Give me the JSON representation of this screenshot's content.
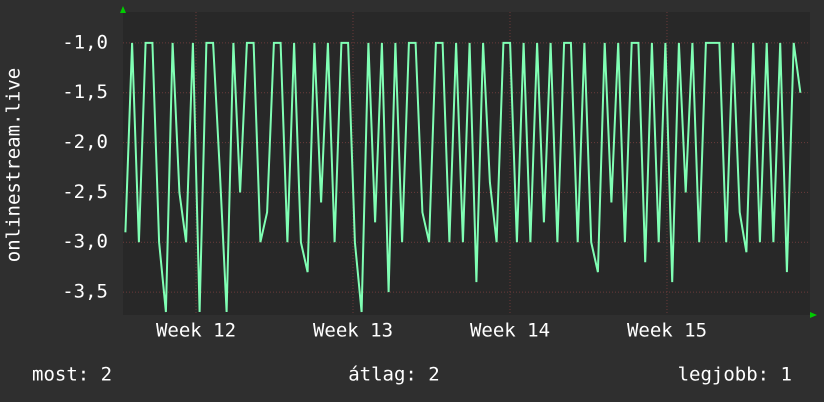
{
  "chart_data": {
    "type": "line",
    "y_label": "onlinestream.live",
    "x": [
      11.55,
      11.593,
      11.636,
      11.679,
      11.722,
      11.765,
      11.808,
      11.851,
      11.894,
      11.937,
      11.98,
      12.023,
      12.066,
      12.109,
      12.152,
      12.195,
      12.238,
      12.281,
      12.324,
      12.367,
      12.41,
      12.453,
      12.496,
      12.539,
      12.582,
      12.625,
      12.668,
      12.711,
      12.754,
      12.797,
      12.84,
      12.883,
      12.926,
      12.969,
      13.012,
      13.055,
      13.098,
      13.141,
      13.184,
      13.227,
      13.27,
      13.313,
      13.356,
      13.399,
      13.442,
      13.485,
      13.528,
      13.571,
      13.614,
      13.657,
      13.7,
      13.743,
      13.786,
      13.829,
      13.872,
      13.915,
      13.958,
      14.001,
      14.044,
      14.087,
      14.13,
      14.173,
      14.216,
      14.259,
      14.302,
      14.345,
      14.388,
      14.431,
      14.474,
      14.517,
      14.56,
      14.603,
      14.646,
      14.689,
      14.732,
      14.775,
      14.818,
      14.861,
      14.904,
      14.947,
      14.99,
      15.033,
      15.076,
      15.119,
      15.162,
      15.205,
      15.248,
      15.291,
      15.334,
      15.377,
      15.42,
      15.463,
      15.506,
      15.549,
      15.592,
      15.635,
      15.678,
      15.721,
      15.764,
      15.807,
      15.85
    ],
    "series": [
      {
        "color": "#80ffb4",
        "values": [
          -2.9,
          -1,
          -3,
          -1,
          -1,
          -3,
          -3.7,
          -1,
          -2.5,
          -3,
          -1,
          -3.7,
          -1,
          -1,
          -2.3,
          -3.7,
          -1,
          -2.5,
          -1,
          -1,
          -3,
          -2.7,
          -1,
          -1,
          -3,
          -1,
          -3,
          -3.3,
          -1,
          -2.6,
          -1,
          -3,
          -1,
          -1,
          -3,
          -3.7,
          -1,
          -2.8,
          -1,
          -3.5,
          -1,
          -3,
          -1,
          -1,
          -2.7,
          -3,
          -1,
          -1,
          -3,
          -1,
          -3,
          -1,
          -3.4,
          -1,
          -2.4,
          -3,
          -1,
          -1,
          -3,
          -1,
          -3,
          -1,
          -2.8,
          -1,
          -3,
          -1,
          -1,
          -3,
          -1,
          -3,
          -3.3,
          -1,
          -2.6,
          -1,
          -3,
          -1,
          -1,
          -3.2,
          -1,
          -3,
          -1,
          -3.4,
          -1,
          -2.5,
          -1,
          -3,
          -1,
          -1,
          -1,
          -3,
          -1,
          -2.7,
          -3.1,
          -1,
          -3,
          -1,
          -3,
          -1,
          -3.3,
          -1,
          -1.5
        ]
      }
    ],
    "xlim": [
      11.535,
      15.911
    ],
    "xticks": [
      {
        "value": 12,
        "label": "Week 12"
      },
      {
        "value": 13,
        "label": "Week 13"
      },
      {
        "value": 14,
        "label": "Week 14"
      },
      {
        "value": 15,
        "label": "Week 15"
      }
    ],
    "ylim": [
      -3.73,
      -0.69
    ],
    "yticks": [
      {
        "value": -1,
        "label": "-1,0"
      },
      {
        "value": -1.5,
        "label": "-1,5"
      },
      {
        "value": -2,
        "label": "-2,0"
      },
      {
        "value": -2.5,
        "label": "-2,5"
      },
      {
        "value": -3,
        "label": "-3,0"
      },
      {
        "value": -3.5,
        "label": "-3,5"
      }
    ],
    "grid": true,
    "footer": [
      "most: 2",
      "átlag: 2",
      "legjobb: 1"
    ]
  }
}
